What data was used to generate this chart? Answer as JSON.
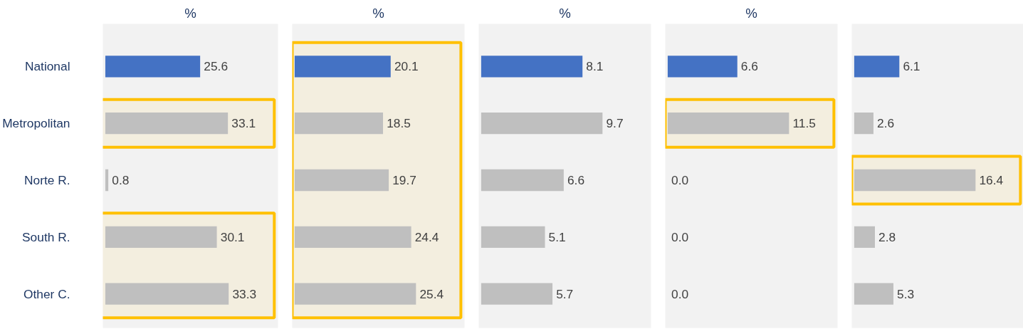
{
  "chart_data": [
    {
      "type": "bar",
      "orientation": "horizontal",
      "title": "%",
      "categories": [
        "National",
        "Metropolitan",
        "Norte R.",
        "South R.",
        "Other C."
      ],
      "values": [
        25.6,
        33.1,
        0.8,
        30.1,
        33.3
      ],
      "colors": [
        "#4472c4",
        "#bfbfbf",
        "#bfbfbf",
        "#bfbfbf",
        "#bfbfbf"
      ],
      "data_labels": true,
      "grid": false,
      "bands": [
        {
          "axis": "y",
          "from": "Metropolitan",
          "to": "Metropolitan",
          "color": "#ffc000"
        },
        {
          "axis": "y",
          "from": "South R.",
          "to": "Other C.",
          "color": "#ffc000"
        }
      ]
    },
    {
      "type": "bar",
      "orientation": "horizontal",
      "title": "%",
      "categories": [
        "National",
        "Metropolitan",
        "Norte R.",
        "South R.",
        "Other C."
      ],
      "values": [
        20.1,
        18.5,
        19.7,
        24.4,
        25.4
      ],
      "colors": [
        "#4472c4",
        "#bfbfbf",
        "#bfbfbf",
        "#bfbfbf",
        "#bfbfbf"
      ],
      "data_labels": true,
      "grid": false,
      "tick_labels": false,
      "bands": [
        {
          "axis": "y",
          "from": "National",
          "to": "Other C.",
          "color": "#ffc000"
        }
      ]
    },
    {
      "type": "bar",
      "orientation": "horizontal",
      "title": "%",
      "categories": [
        "National",
        "Metropolitan",
        "Norte R.",
        "South R.",
        "Other C."
      ],
      "values": [
        8.1,
        9.7,
        6.6,
        5.1,
        5.7
      ],
      "colors": [
        "#4472c4",
        "#bfbfbf",
        "#bfbfbf",
        "#bfbfbf",
        "#bfbfbf"
      ],
      "data_labels": true,
      "grid": false,
      "tick_labels": false
    },
    {
      "type": "bar",
      "orientation": "horizontal",
      "title": "%",
      "categories": [
        "National",
        "Metropolitan",
        "Norte R.",
        "South R.",
        "Other C."
      ],
      "values": [
        6.6,
        11.5,
        0.0,
        0.0,
        0.0
      ],
      "value_labels": [
        "6.6",
        "11.5",
        "0.0",
        "0.0",
        "0.0"
      ],
      "colors": [
        "#4472c4",
        "#bfbfbf",
        "#bfbfbf",
        "#bfbfbf",
        "#bfbfbf"
      ],
      "grid": false,
      "tick_labels": false,
      "bands": [
        {
          "axis": "y",
          "from": "Metropolitan",
          "to": "Metropolitan",
          "color": "#ffc000"
        }
      ]
    },
    {
      "type": "bar",
      "orientation": "horizontal",
      "categories": [
        "National",
        "Metropolitan",
        "Norte R.",
        "South R.",
        "Other C."
      ],
      "values": [
        6.1,
        2.6,
        16.4,
        2.8,
        5.3
      ],
      "colors": [
        "#4472c4",
        "#bfbfbf",
        "#bfbfbf",
        "#bfbfbf",
        "#bfbfbf"
      ],
      "data_labels": true,
      "grid": false,
      "tick_labels": false,
      "bands": [
        {
          "axis": "y",
          "from": "Norte R.",
          "to": "Norte R.",
          "color": "#ffc000"
        }
      ]
    }
  ]
}
